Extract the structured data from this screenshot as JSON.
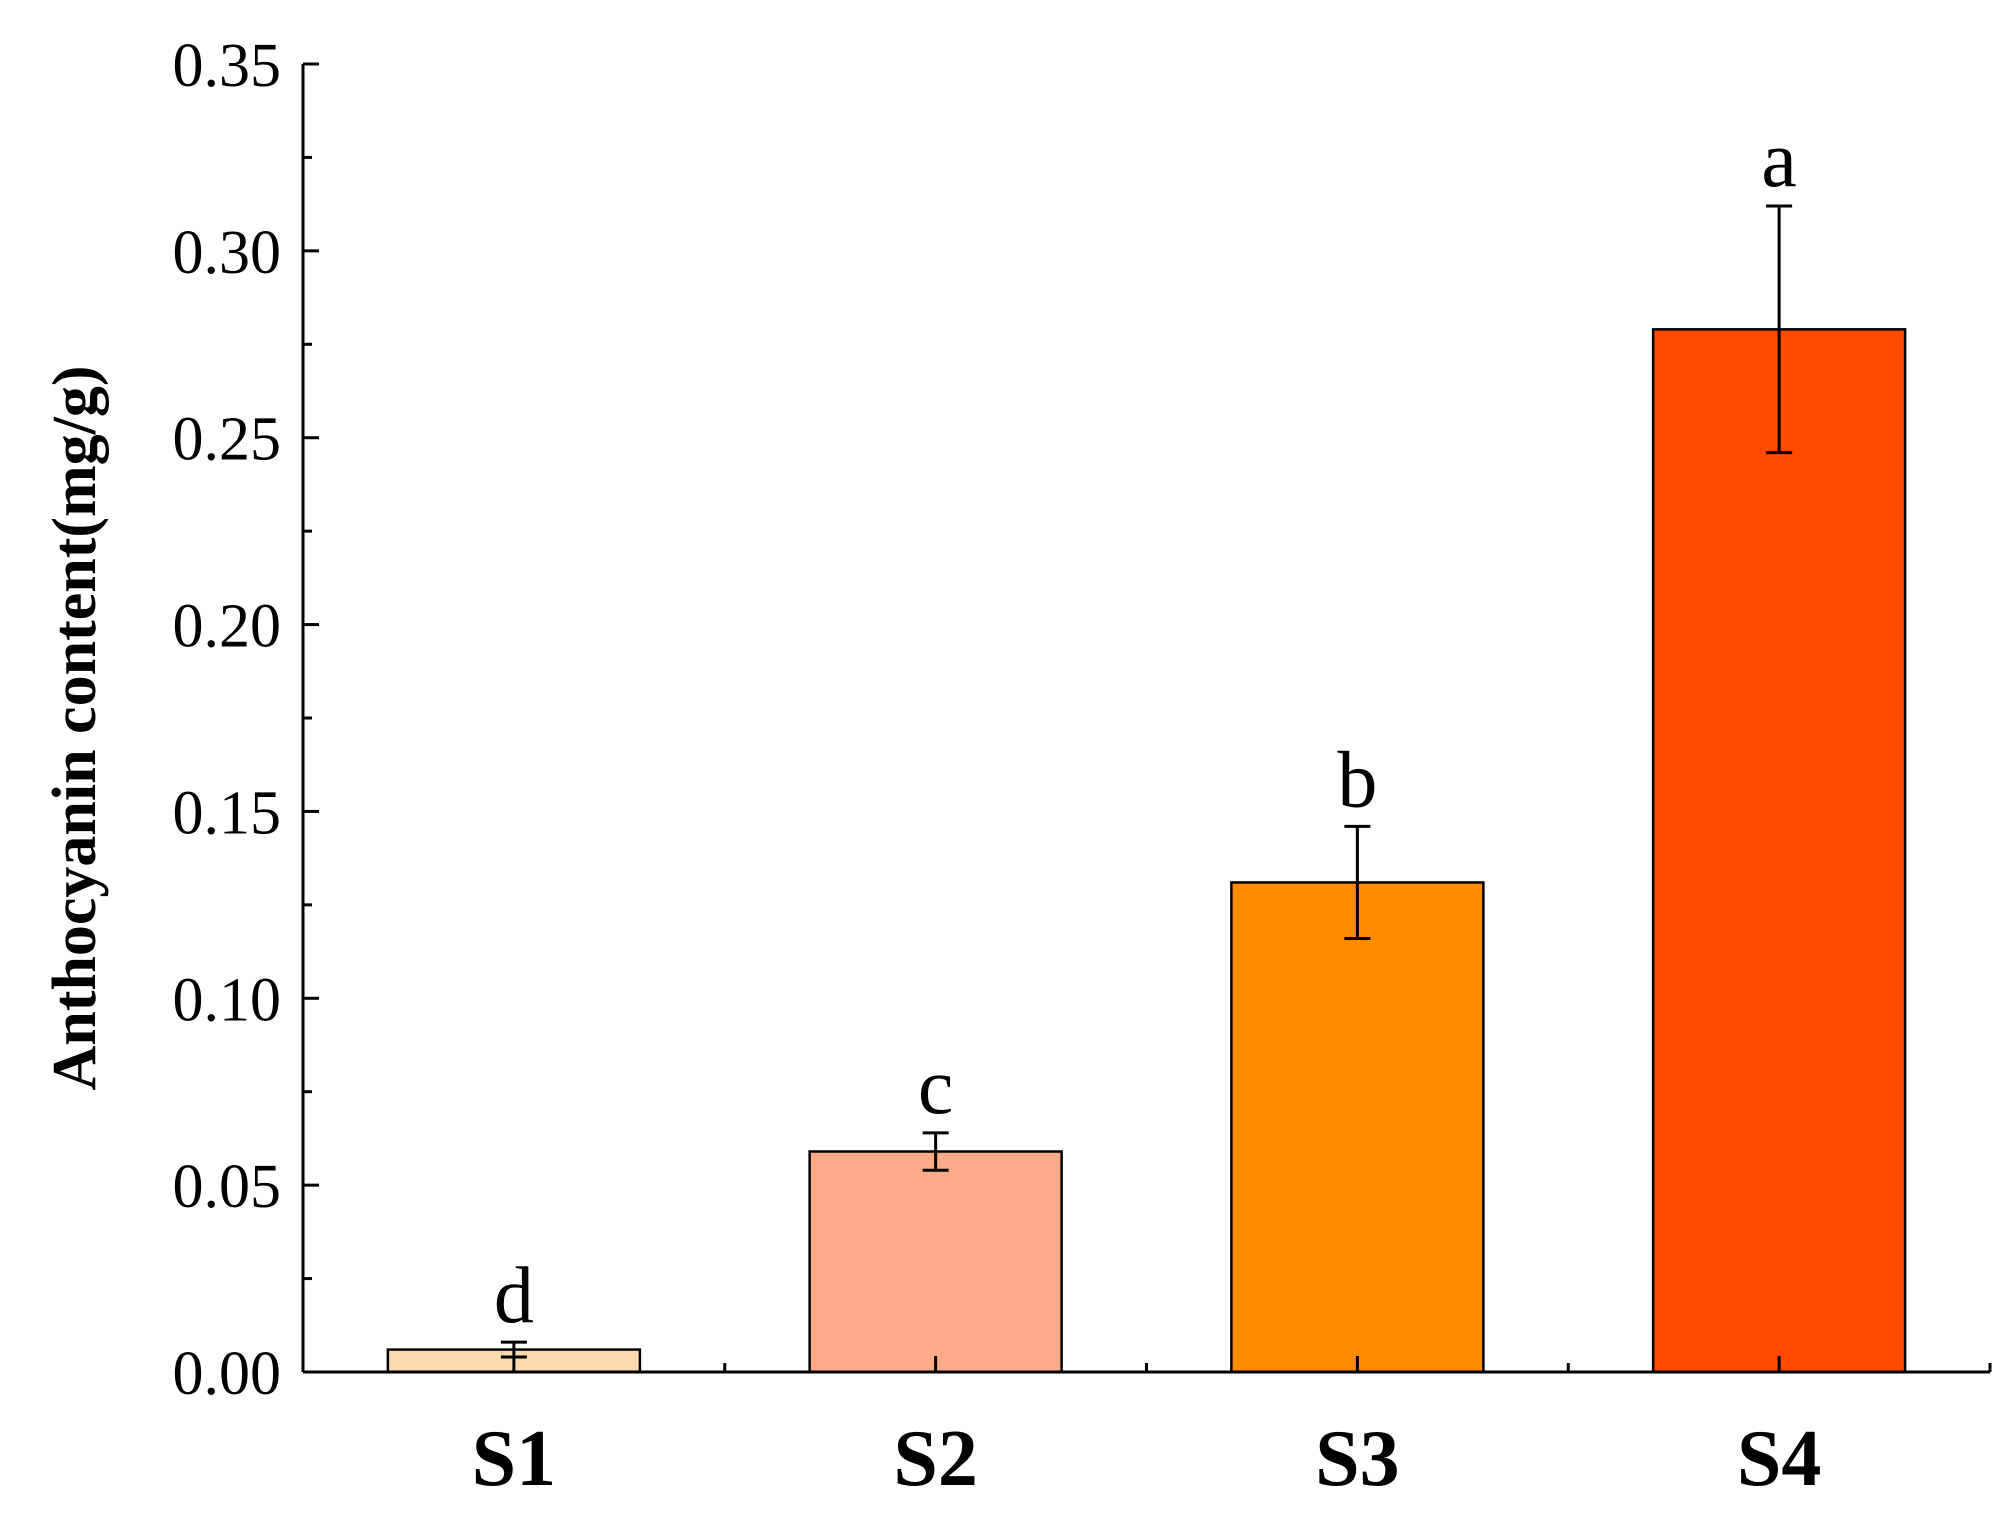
{
  "chart_data": {
    "type": "bar",
    "title": "",
    "xlabel": "",
    "ylabel": "Anthocyanin content(mg/g)",
    "ylim": [
      0,
      0.35
    ],
    "yticks": [
      "0.00",
      "0.05",
      "0.10",
      "0.15",
      "0.20",
      "0.25",
      "0.30",
      "0.35"
    ],
    "categories": [
      "S1",
      "S2",
      "S3",
      "S4"
    ],
    "values": [
      0.006,
      0.059,
      0.131,
      0.279
    ],
    "errors": [
      0.002,
      0.005,
      0.015,
      0.033
    ],
    "significance": [
      "d",
      "c",
      "b",
      "a"
    ],
    "colors": [
      "#FDD9AE",
      "#FFAA88",
      "#FF8C00",
      "#FF4A00"
    ],
    "grid": false,
    "legend": "none"
  }
}
